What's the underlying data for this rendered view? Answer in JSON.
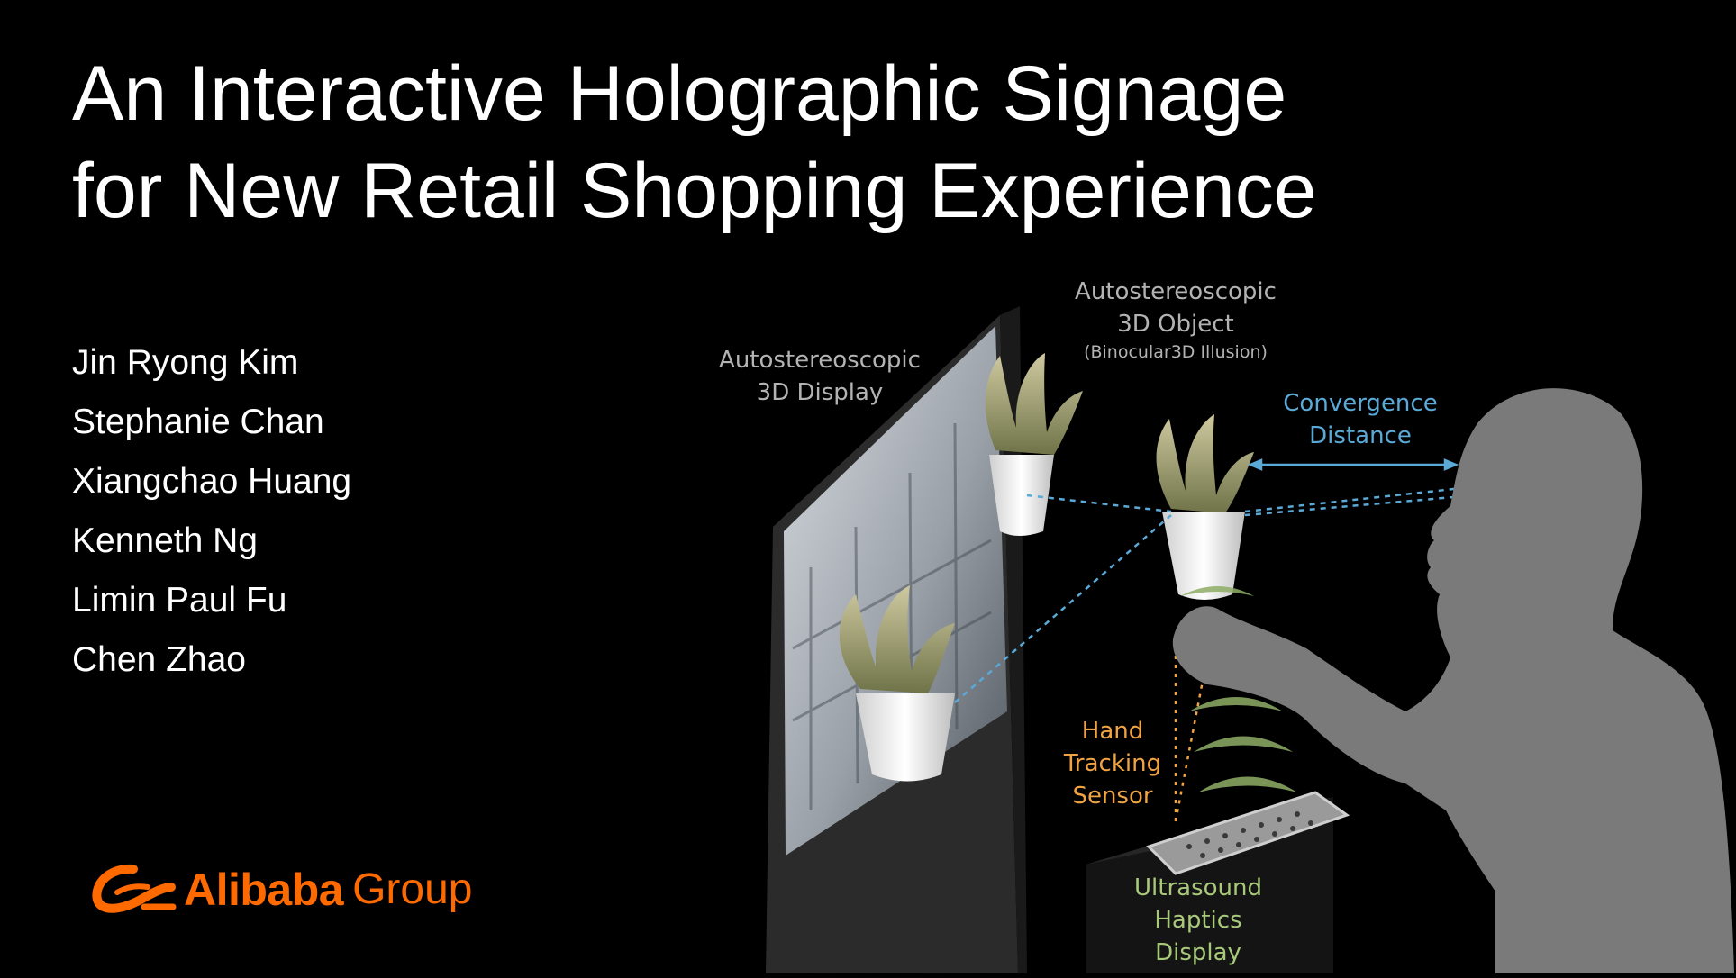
{
  "title": {
    "line1": "An Interactive Holographic Signage",
    "line2": "for New Retail Shopping Experience"
  },
  "authors": [
    "Jin Ryong Kim",
    "Stephanie Chan",
    "Xiangchao Huang",
    "Kenneth Ng",
    "Limin Paul Fu",
    "Chen Zhao"
  ],
  "logo": {
    "name": "Alibaba",
    "suffix": "Group",
    "color": "#ff6a00"
  },
  "labels": {
    "display": {
      "line1": "Autostereoscopic",
      "line2": "3D Display"
    },
    "object": {
      "line1": "Autostereoscopic",
      "line2": "3D Object",
      "note": "(Binocular3D Illusion)"
    },
    "convergence": {
      "line1": "Convergence",
      "line2": "Distance"
    },
    "tracking": {
      "line1": "Hand",
      "line2": "Tracking",
      "line3": "Sensor"
    },
    "haptics": {
      "line1": "Ultrasound",
      "line2": "Haptics",
      "line3": "Display"
    }
  },
  "colors": {
    "background": "#000000",
    "label_gray": "#b3b3b3",
    "label_blue": "#5aa9d6",
    "label_orange": "#f0a343",
    "label_green": "#a9c97a",
    "silhouette": "#7a7a7a"
  }
}
